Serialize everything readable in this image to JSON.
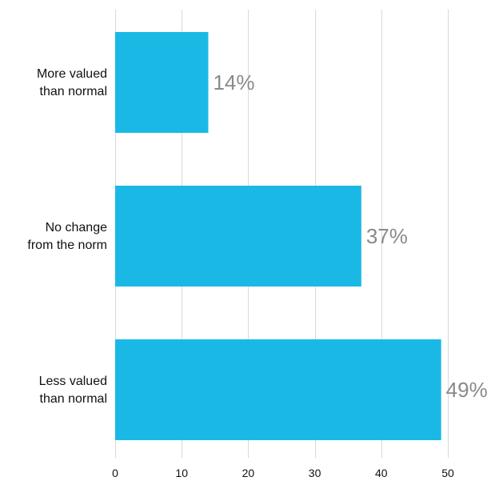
{
  "chart_data": {
    "type": "bar",
    "orientation": "horizontal",
    "categories": [
      [
        "More valued",
        "than normal"
      ],
      [
        "No change",
        "from the norm"
      ],
      [
        "Less valued",
        "than normal"
      ]
    ],
    "values": [
      14,
      37,
      49
    ],
    "data_labels": [
      "14%",
      "37%",
      "49%"
    ],
    "xlim": [
      0,
      50
    ],
    "x_ticks": [
      0,
      10,
      20,
      30,
      40,
      50
    ],
    "title": "",
    "xlabel": "",
    "ylabel": "",
    "grid": "vertical",
    "legend": "none",
    "colors": {
      "bar": "#1ab9e5",
      "data_label": "#8a8a8a",
      "grid": "#d9d9d9",
      "text": "#111111"
    }
  }
}
